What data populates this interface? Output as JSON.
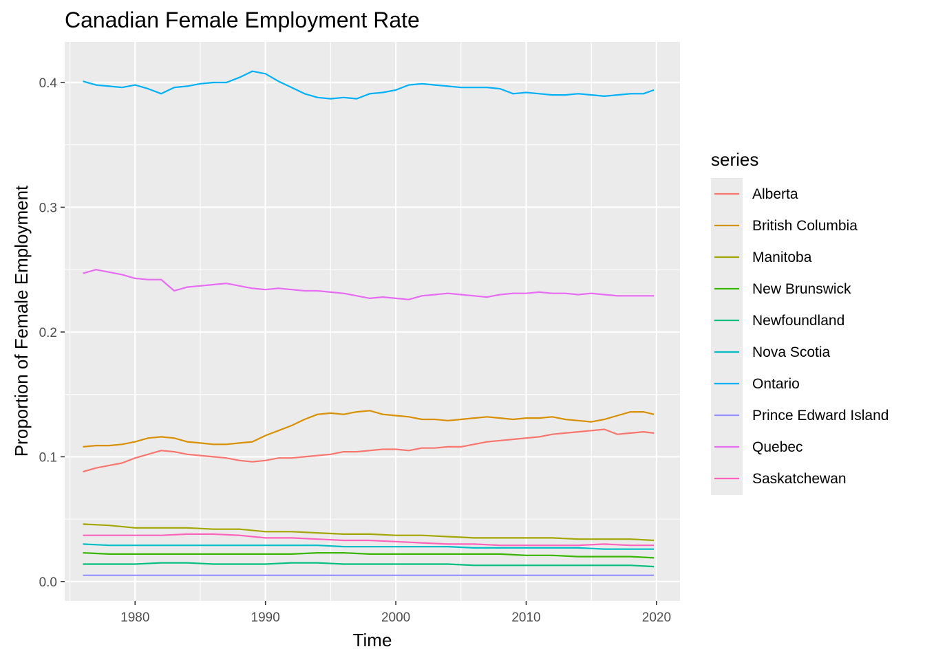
{
  "chart_data": {
    "type": "line",
    "title": "Canadian Female Employment Rate",
    "xlabel": "Time",
    "ylabel": "Proportion of Female Employment",
    "xlim": [
      1974.6,
      2021.8
    ],
    "ylim": [
      -0.0155,
      0.4325
    ],
    "x_ticks": [
      1980,
      1990,
      2000,
      2010,
      2020
    ],
    "x_tick_labels": [
      "1980",
      "1990",
      "2000",
      "2010",
      "2020"
    ],
    "y_ticks": [
      0.0,
      0.1,
      0.2,
      0.3,
      0.4
    ],
    "y_tick_labels": [
      "0.0",
      "0.1",
      "0.2",
      "0.3",
      "0.4"
    ],
    "grid": true,
    "legend": {
      "title": "series",
      "position": "right"
    },
    "series": [
      {
        "name": "Alberta",
        "color": "#F8766D",
        "x": [
          1976,
          1977,
          1978,
          1979,
          1980,
          1981,
          1982,
          1983,
          1984,
          1985,
          1986,
          1987,
          1988,
          1989,
          1990,
          1991,
          1992,
          1993,
          1994,
          1995,
          1996,
          1997,
          1998,
          1999,
          2000,
          2001,
          2002,
          2003,
          2004,
          2005,
          2006,
          2007,
          2008,
          2009,
          2010,
          2011,
          2012,
          2013,
          2014,
          2015,
          2016,
          2017,
          2018,
          2019,
          2019.8
        ],
        "values": [
          0.088,
          0.091,
          0.093,
          0.095,
          0.099,
          0.102,
          0.105,
          0.104,
          0.102,
          0.101,
          0.1,
          0.099,
          0.097,
          0.096,
          0.097,
          0.099,
          0.099,
          0.1,
          0.101,
          0.102,
          0.104,
          0.104,
          0.105,
          0.106,
          0.106,
          0.105,
          0.107,
          0.107,
          0.108,
          0.108,
          0.11,
          0.112,
          0.113,
          0.114,
          0.115,
          0.116,
          0.118,
          0.119,
          0.12,
          0.121,
          0.122,
          0.118,
          0.119,
          0.12,
          0.119
        ]
      },
      {
        "name": "British Columbia",
        "color": "#D89000",
        "x": [
          1976,
          1977,
          1978,
          1979,
          1980,
          1981,
          1982,
          1983,
          1984,
          1985,
          1986,
          1987,
          1988,
          1989,
          1990,
          1991,
          1992,
          1993,
          1994,
          1995,
          1996,
          1997,
          1998,
          1999,
          2000,
          2001,
          2002,
          2003,
          2004,
          2005,
          2006,
          2007,
          2008,
          2009,
          2010,
          2011,
          2012,
          2013,
          2014,
          2015,
          2016,
          2017,
          2018,
          2019,
          2019.8
        ],
        "values": [
          0.108,
          0.109,
          0.109,
          0.11,
          0.112,
          0.115,
          0.116,
          0.115,
          0.112,
          0.111,
          0.11,
          0.11,
          0.111,
          0.112,
          0.117,
          0.121,
          0.125,
          0.13,
          0.134,
          0.135,
          0.134,
          0.136,
          0.137,
          0.134,
          0.133,
          0.132,
          0.13,
          0.13,
          0.129,
          0.13,
          0.131,
          0.132,
          0.131,
          0.13,
          0.131,
          0.131,
          0.132,
          0.13,
          0.129,
          0.128,
          0.13,
          0.133,
          0.136,
          0.136,
          0.134
        ]
      },
      {
        "name": "Manitoba",
        "color": "#A3A500",
        "x": [
          1976,
          1978,
          1980,
          1982,
          1984,
          1986,
          1988,
          1990,
          1992,
          1994,
          1996,
          1998,
          2000,
          2002,
          2004,
          2006,
          2008,
          2010,
          2012,
          2014,
          2016,
          2018,
          2019.8
        ],
        "values": [
          0.046,
          0.045,
          0.043,
          0.043,
          0.043,
          0.042,
          0.042,
          0.04,
          0.04,
          0.039,
          0.038,
          0.038,
          0.037,
          0.037,
          0.036,
          0.035,
          0.035,
          0.035,
          0.035,
          0.034,
          0.034,
          0.034,
          0.033
        ]
      },
      {
        "name": "New Brunswick",
        "color": "#39B600",
        "x": [
          1976,
          1978,
          1980,
          1982,
          1984,
          1986,
          1988,
          1990,
          1992,
          1994,
          1996,
          1998,
          2000,
          2002,
          2004,
          2006,
          2008,
          2010,
          2012,
          2014,
          2016,
          2018,
          2019.8
        ],
        "values": [
          0.023,
          0.022,
          0.022,
          0.022,
          0.022,
          0.022,
          0.022,
          0.022,
          0.022,
          0.023,
          0.023,
          0.022,
          0.022,
          0.022,
          0.022,
          0.022,
          0.022,
          0.021,
          0.021,
          0.02,
          0.02,
          0.02,
          0.019
        ]
      },
      {
        "name": "Newfoundland",
        "color": "#00BF7D",
        "x": [
          1976,
          1978,
          1980,
          1982,
          1984,
          1986,
          1988,
          1990,
          1992,
          1994,
          1996,
          1998,
          2000,
          2002,
          2004,
          2006,
          2008,
          2010,
          2012,
          2014,
          2016,
          2018,
          2019.8
        ],
        "values": [
          0.014,
          0.014,
          0.014,
          0.015,
          0.015,
          0.014,
          0.014,
          0.014,
          0.015,
          0.015,
          0.014,
          0.014,
          0.014,
          0.014,
          0.014,
          0.013,
          0.013,
          0.013,
          0.013,
          0.013,
          0.013,
          0.013,
          0.012
        ]
      },
      {
        "name": "Nova Scotia",
        "color": "#00BFC4",
        "x": [
          1976,
          1978,
          1980,
          1982,
          1984,
          1986,
          1988,
          1990,
          1992,
          1994,
          1996,
          1998,
          2000,
          2002,
          2004,
          2006,
          2008,
          2010,
          2012,
          2014,
          2016,
          2018,
          2019.8
        ],
        "values": [
          0.03,
          0.029,
          0.029,
          0.029,
          0.029,
          0.029,
          0.029,
          0.029,
          0.029,
          0.029,
          0.028,
          0.028,
          0.028,
          0.028,
          0.028,
          0.027,
          0.027,
          0.027,
          0.027,
          0.027,
          0.026,
          0.026,
          0.026
        ]
      },
      {
        "name": "Ontario",
        "color": "#00B0F6",
        "x": [
          1976,
          1977,
          1978,
          1979,
          1980,
          1981,
          1982,
          1983,
          1984,
          1985,
          1986,
          1987,
          1988,
          1989,
          1990,
          1991,
          1992,
          1993,
          1994,
          1995,
          1996,
          1997,
          1998,
          1999,
          2000,
          2001,
          2002,
          2003,
          2004,
          2005,
          2006,
          2007,
          2008,
          2009,
          2010,
          2011,
          2012,
          2013,
          2014,
          2015,
          2016,
          2017,
          2018,
          2019,
          2019.8
        ],
        "values": [
          0.401,
          0.398,
          0.397,
          0.396,
          0.398,
          0.395,
          0.391,
          0.396,
          0.397,
          0.399,
          0.4,
          0.4,
          0.404,
          0.409,
          0.407,
          0.401,
          0.396,
          0.391,
          0.388,
          0.387,
          0.388,
          0.387,
          0.391,
          0.392,
          0.394,
          0.398,
          0.399,
          0.398,
          0.397,
          0.396,
          0.396,
          0.396,
          0.395,
          0.391,
          0.392,
          0.391,
          0.39,
          0.39,
          0.391,
          0.39,
          0.389,
          0.39,
          0.391,
          0.391,
          0.394
        ]
      },
      {
        "name": "Prince Edward Island",
        "color": "#9590FF",
        "x": [
          1976,
          1980,
          1984,
          1988,
          1992,
          1996,
          2000,
          2004,
          2008,
          2012,
          2016,
          2019.8
        ],
        "values": [
          0.005,
          0.005,
          0.005,
          0.005,
          0.005,
          0.005,
          0.005,
          0.005,
          0.005,
          0.005,
          0.005,
          0.005
        ]
      },
      {
        "name": "Quebec",
        "color": "#E76BF3",
        "x": [
          1976,
          1977,
          1978,
          1979,
          1980,
          1981,
          1982,
          1983,
          1984,
          1985,
          1986,
          1987,
          1988,
          1989,
          1990,
          1991,
          1992,
          1993,
          1994,
          1995,
          1996,
          1997,
          1998,
          1999,
          2000,
          2001,
          2002,
          2003,
          2004,
          2005,
          2006,
          2007,
          2008,
          2009,
          2010,
          2011,
          2012,
          2013,
          2014,
          2015,
          2016,
          2017,
          2018,
          2019,
          2019.8
        ],
        "values": [
          0.247,
          0.25,
          0.248,
          0.246,
          0.243,
          0.242,
          0.242,
          0.233,
          0.236,
          0.237,
          0.238,
          0.239,
          0.237,
          0.235,
          0.234,
          0.235,
          0.234,
          0.233,
          0.233,
          0.232,
          0.231,
          0.229,
          0.227,
          0.228,
          0.227,
          0.226,
          0.229,
          0.23,
          0.231,
          0.23,
          0.229,
          0.228,
          0.23,
          0.231,
          0.231,
          0.232,
          0.231,
          0.231,
          0.23,
          0.231,
          0.23,
          0.229,
          0.229,
          0.229,
          0.229
        ]
      },
      {
        "name": "Saskatchewan",
        "color": "#FF62BC",
        "x": [
          1976,
          1978,
          1980,
          1982,
          1984,
          1986,
          1988,
          1990,
          1992,
          1994,
          1996,
          1998,
          2000,
          2002,
          2004,
          2006,
          2008,
          2010,
          2012,
          2014,
          2016,
          2018,
          2019.8
        ],
        "values": [
          0.037,
          0.037,
          0.037,
          0.037,
          0.038,
          0.038,
          0.037,
          0.035,
          0.035,
          0.034,
          0.033,
          0.033,
          0.032,
          0.031,
          0.03,
          0.03,
          0.029,
          0.029,
          0.029,
          0.029,
          0.03,
          0.029,
          0.029
        ]
      }
    ]
  }
}
